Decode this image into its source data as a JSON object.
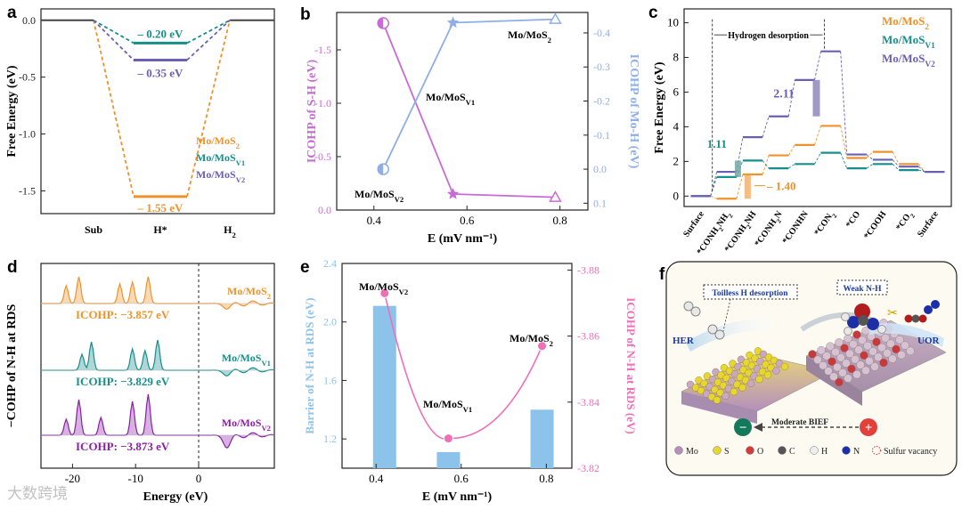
{
  "panels": {
    "a": {
      "label": "a"
    },
    "b": {
      "label": "b"
    },
    "c": {
      "label": "c"
    },
    "d": {
      "label": "d"
    },
    "e": {
      "label": "e"
    },
    "f": {
      "label": "f"
    }
  },
  "colors": {
    "mos2": "#f0922b",
    "v1": "#168f8c",
    "v2": "#6a5fb5",
    "purple": "#c96bd6",
    "blue": "#8eaee8",
    "pink": "#ef6fb7",
    "bar": "#8cc3ea",
    "d_v2": "#8b1fa8"
  },
  "chart_data": [
    {
      "panel": "a",
      "type": "line",
      "title": "",
      "xlabel": "",
      "ylabel": "Free Energy (eV)",
      "categories": [
        "Sub",
        "H*",
        "H2"
      ],
      "ylim": [
        -1.7,
        0.1
      ],
      "yticks": [
        "0.0",
        "-0.5",
        "-1.0",
        "-1.5"
      ],
      "series": [
        {
          "name": "Mo/MoS2",
          "values": [
            0,
            -1.55,
            0
          ],
          "label": "– 1.55 eV"
        },
        {
          "name": "Mo/MoSV1",
          "values": [
            0,
            -0.2,
            0
          ],
          "label": "– 0.20 eV"
        },
        {
          "name": "Mo/MoSV2",
          "values": [
            0,
            -0.35,
            0
          ],
          "label": "– 0.35 eV"
        }
      ],
      "legend": [
        "Mo/MoS2",
        "Mo/MoSV1",
        "Mo/MoSV2"
      ],
      "legend_position": "bottom-right"
    },
    {
      "panel": "b",
      "type": "line",
      "xlabel": "E (mV nm⁻¹)",
      "ylabel_left": "ICOHP of S-H (eV)",
      "ylabel_right": "ICOHP of Mo-H (eV)",
      "xlim": [
        0.32,
        0.86
      ],
      "xticks": [
        "0.4",
        "0.6",
        "0.8"
      ],
      "ylim_left": [
        0,
        -1.85
      ],
      "yticks_left": [
        "0.0",
        "-0.5",
        "-1.0",
        "-1.5"
      ],
      "ylim_right": [
        0.12,
        -0.46
      ],
      "yticks_right": [
        "0.1",
        "0.0",
        "-0.1",
        "-0.2",
        "-0.3",
        "-0.4"
      ],
      "x": [
        0.42,
        0.57,
        0.79
      ],
      "series": [
        {
          "axis": "left",
          "values": [
            -1.75,
            -0.15,
            -0.12
          ]
        },
        {
          "axis": "right",
          "values": [
            0.0,
            -0.43,
            -0.44
          ]
        }
      ],
      "annotations": [
        "Mo/MoSV2",
        "Mo/MoSV1",
        "Mo/MoS2"
      ]
    },
    {
      "panel": "c",
      "type": "line",
      "xlabel": "",
      "ylabel": "Free Energy (eV)",
      "ylim": [
        -0.6,
        10.8
      ],
      "yticks": [
        "0",
        "2",
        "4",
        "6",
        "8",
        "10"
      ],
      "categories": [
        "Surface",
        "*CONH2NH2",
        "*CONH2NH",
        "*CONH2N",
        "*CONHN",
        "*CON2",
        "*CO",
        "*COOH",
        "*CO2",
        "Surface"
      ],
      "series": [
        {
          "name": "Mo/MoS2",
          "values": [
            0,
            -0.15,
            1.25,
            2.35,
            2.95,
            4.05,
            2.2,
            2.55,
            1.85,
            1.4
          ]
        },
        {
          "name": "Mo/MoSV1",
          "values": [
            0,
            1.1,
            2.05,
            1.6,
            1.85,
            2.5,
            1.6,
            1.85,
            1.5,
            1.4
          ]
        },
        {
          "name": "Mo/MoSV2",
          "values": [
            0,
            1.4,
            3.4,
            4.6,
            6.7,
            8.35,
            2.4,
            2.1,
            1.7,
            1.4
          ]
        }
      ],
      "annotations": [
        "Hydrogen desorption",
        "2.11",
        "1.11",
        "1.40"
      ],
      "legend": [
        "Mo/MoS2",
        "Mo/MoSV1",
        "Mo/MoSV2"
      ],
      "legend_position": "top-right"
    },
    {
      "panel": "d",
      "type": "line",
      "xlabel": "Energy (eV)",
      "ylabel": "−COHP of N-H at RDS",
      "xlim": [
        -25,
        12
      ],
      "xticks": [
        "-20",
        "-10",
        "0"
      ],
      "series": [
        {
          "name": "Mo/MoS2",
          "icohp": "ICOHP: −3.857 eV",
          "peaks_x": [
            -21,
            -19,
            -12.5,
            -10.5,
            -8
          ]
        },
        {
          "name": "Mo/MoSV1",
          "icohp": "ICOHP: −3.829 eV",
          "peaks_x": [
            -18.5,
            -17,
            -10.5,
            -8.5,
            -6.5
          ]
        },
        {
          "name": "Mo/MoSV2",
          "icohp": "ICOHP: −3.873 eV",
          "peaks_x": [
            -21,
            -19,
            -15.5,
            -10.5,
            -8
          ]
        }
      ]
    },
    {
      "panel": "e",
      "type": "bar",
      "xlabel": "E (mV nm⁻¹)",
      "ylabel_left": "Barrier of N-H at RDS (eV)",
      "ylabel_right": "ICOHP of N-H at RDS (eV)",
      "xlim": [
        0.32,
        0.86
      ],
      "xticks": [
        "0.4",
        "0.6",
        "0.8"
      ],
      "ylim_left": [
        1.0,
        2.4
      ],
      "yticks_left": [
        "1.2",
        "1.6",
        "2.0",
        "2.4"
      ],
      "ylim_right": [
        -3.82,
        -3.882
      ],
      "yticks_right": [
        "-3.82",
        "-3.84",
        "-3.86",
        "-3.88"
      ],
      "x": [
        0.42,
        0.57,
        0.79
      ],
      "bars": [
        2.11,
        1.11,
        1.4
      ],
      "line": [
        -3.873,
        -3.829,
        -3.857
      ],
      "annotations": [
        "Mo/MoSV2",
        "Mo/MoSV1",
        "Mo/MoS2"
      ]
    }
  ],
  "panel_f": {
    "labels": {
      "hydrogen": "Toilless H desorption",
      "weak": "Weak N-H",
      "her": "HER",
      "uor": "UOR",
      "bief": "Moderate BIEF",
      "minus": "−",
      "plus": "+"
    },
    "legend": [
      "Mo",
      "S",
      "O",
      "C",
      "H",
      "N",
      "Sulfur vacancy"
    ]
  },
  "watermark": "大数跨境"
}
